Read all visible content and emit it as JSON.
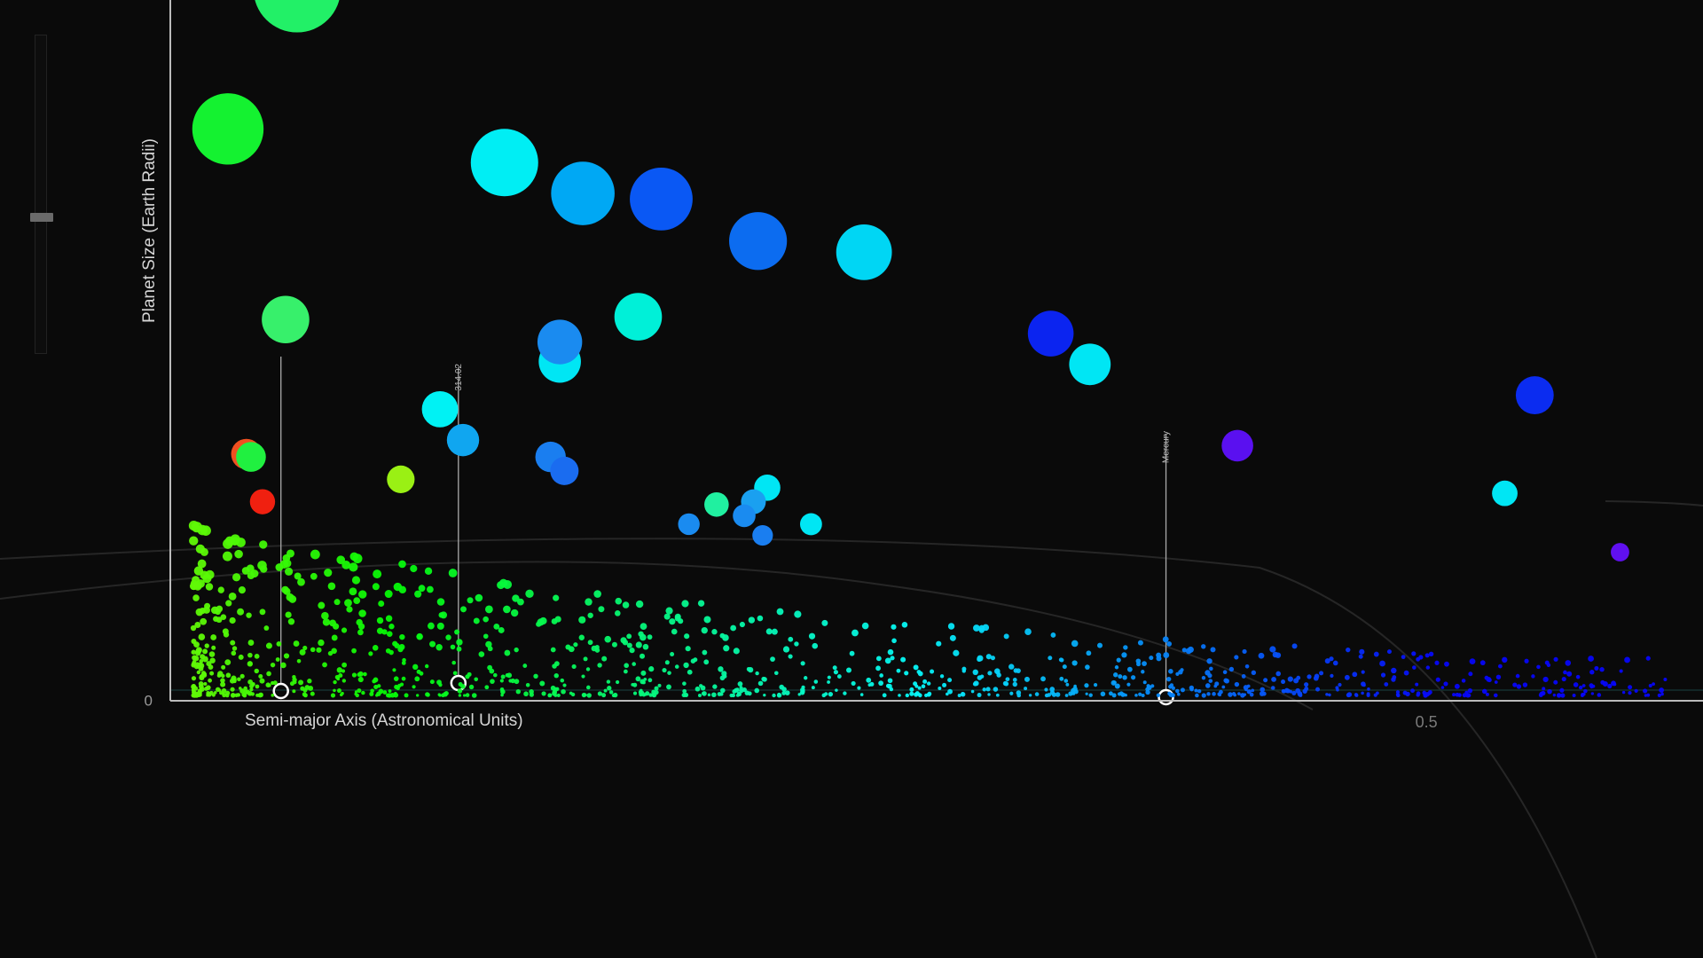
{
  "chart_data": {
    "type": "scatter",
    "title": "",
    "xlabel": "Semi-major Axis (Astronomical Units)",
    "ylabel": "Planet Size (Earth Radii)",
    "xlim": [
      -0.045,
      0.62
    ],
    "ylim": [
      0,
      25
    ],
    "x_tick_labels": [
      "0.5"
    ],
    "y_tick_labels": [
      "0"
    ],
    "colors": {
      "axis": "#bbbbbb",
      "text": "#d6d6d6",
      "background": "#0a0a0a",
      "marker": "#aaaaaa"
    },
    "markers": [
      {
        "label": "Mercury",
        "x": 0.387
      },
      {
        "label": "314.02",
        "x": 0.08
      },
      {
        "label": "",
        "x": 0.003
      }
    ],
    "large_planets": [
      {
        "x": 0.01,
        "y": 25.4,
        "r": 24.6,
        "color": "#22f067"
      },
      {
        "x": -0.02,
        "y": 20.4,
        "r": 20.1,
        "color": "#14f230"
      },
      {
        "x": 0.1,
        "y": 19.2,
        "r": 19.0,
        "color": "#00eef4"
      },
      {
        "x": 0.134,
        "y": 18.1,
        "r": 17.9,
        "color": "#00a8f4"
      },
      {
        "x": 0.168,
        "y": 17.9,
        "r": 17.7,
        "color": "#0a58f4"
      },
      {
        "x": 0.21,
        "y": 16.4,
        "r": 16.3,
        "color": "#0c6cf0"
      },
      {
        "x": 0.256,
        "y": 16.0,
        "r": 15.7,
        "color": "#00d6f4"
      },
      {
        "x": 0.005,
        "y": 13.6,
        "r": 13.4,
        "color": "#37f06b"
      },
      {
        "x": 0.158,
        "y": 13.7,
        "r": 13.4,
        "color": "#00f0d8"
      },
      {
        "x": 0.124,
        "y": 12.1,
        "r": 11.9,
        "color": "#00e6f4"
      },
      {
        "x": 0.124,
        "y": 12.8,
        "r": 12.6,
        "color": "#1a8bf0"
      },
      {
        "x": 0.337,
        "y": 13.1,
        "r": 12.9,
        "color": "#0b24f0"
      },
      {
        "x": 0.354,
        "y": 12.0,
        "r": 11.7,
        "color": "#00e6f4"
      },
      {
        "x": 0.547,
        "y": 10.9,
        "r": 10.7,
        "color": "#0b2cf0"
      },
      {
        "x": 0.418,
        "y": 9.1,
        "r": 8.9,
        "color": "#5a10f0"
      },
      {
        "x": 0.072,
        "y": 10.4,
        "r": 10.2,
        "color": "#00f2f4"
      },
      {
        "x": 0.082,
        "y": 9.3,
        "r": 9.1,
        "color": "#10a6f0"
      },
      {
        "x": 0.12,
        "y": 8.7,
        "r": 8.6,
        "color": "#1a7ef0"
      },
      {
        "x": 0.126,
        "y": 8.2,
        "r": 8.0,
        "color": "#1a6cf0"
      },
      {
        "x": 0.055,
        "y": 7.9,
        "r": 7.8,
        "color": "#9af014"
      },
      {
        "x": -0.005,
        "y": 7.1,
        "r": 7.1,
        "color": "#f02010"
      },
      {
        "x": -0.012,
        "y": 8.8,
        "r": 8.6,
        "color": "#f05020"
      },
      {
        "x": -0.01,
        "y": 8.7,
        "r": 8.4,
        "color": "#20f040"
      },
      {
        "x": 0.214,
        "y": 7.6,
        "r": 7.4,
        "color": "#00e6f4"
      },
      {
        "x": 0.534,
        "y": 7.4,
        "r": 7.2,
        "color": "#00e6f4"
      },
      {
        "x": 0.208,
        "y": 7.1,
        "r": 7.0,
        "color": "#1aa0f0"
      },
      {
        "x": 0.204,
        "y": 6.6,
        "r": 6.4,
        "color": "#1a8bf0"
      },
      {
        "x": 0.192,
        "y": 7.0,
        "r": 6.9,
        "color": "#20f0a0"
      },
      {
        "x": 0.233,
        "y": 6.3,
        "r": 6.2,
        "color": "#00e6f4"
      },
      {
        "x": 0.584,
        "y": 5.3,
        "r": 5.2,
        "color": "#6010f0"
      },
      {
        "x": 0.18,
        "y": 6.3,
        "r": 6.1,
        "color": "#1a8bf0"
      },
      {
        "x": 0.212,
        "y": 5.9,
        "r": 5.8,
        "color": "#1a7ef0"
      }
    ]
  }
}
